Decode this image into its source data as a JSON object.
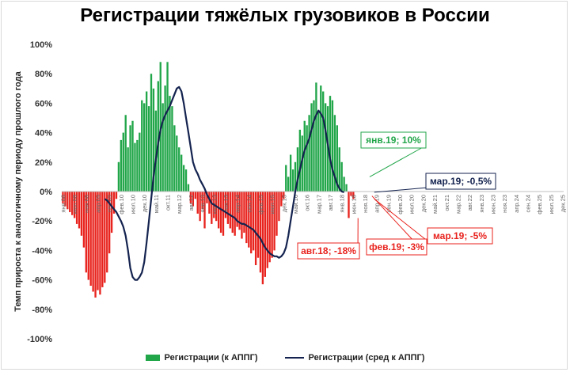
{
  "chart_data": {
    "type": "bar",
    "title": "Регистрации тяжёлых грузовиков в России",
    "ylabel": "Темп прироста к аналогичному периоду прошлого года",
    "xlabel": "",
    "ylim": [
      -100,
      100
    ],
    "y_ticks": [
      "100%",
      "80%",
      "60%",
      "40%",
      "20%",
      "0%",
      "-20%",
      "-40%",
      "-60%",
      "-80%",
      "-100%"
    ],
    "x_tick_labels": [
      "янв.08",
      "июн.08",
      "ноя.08",
      "апр.09",
      "сен.09",
      "фев.10",
      "июл.10",
      "дек.10",
      "май.11",
      "окт.11",
      "мар.12",
      "авг.12",
      "янв.13",
      "июн.13",
      "ноя.13",
      "апр.14",
      "сен.14",
      "фев.15",
      "июл.15",
      "дек.15",
      "май.16",
      "окт.16",
      "мар.17",
      "авг.17",
      "янв.18",
      "июн.18",
      "ноя.18",
      "апр.19",
      "сен.19",
      "фев.20",
      "июл.20",
      "дек.20",
      "май.21",
      "окт.21",
      "мар.22",
      "авг.22",
      "янв.23",
      "июн.23",
      "ноя.23",
      "апр.24",
      "сен.24",
      "фев.25",
      "июл.25",
      "дек.25"
    ],
    "x_start": "янв.08",
    "bars_unit": "% yoy, monthly, starting янв.08",
    "series": [
      {
        "name": "Регистрации (к АППГ)",
        "color_positive": "#22a64a",
        "color_negative": "#e8231e",
        "values": [
          -8,
          -10,
          -12,
          -14,
          -16,
          -18,
          -22,
          -25,
          -30,
          -38,
          -55,
          -60,
          -64,
          -68,
          -72,
          -67,
          -70,
          -65,
          -62,
          -55,
          -42,
          -28,
          -15,
          -5,
          20,
          35,
          40,
          52,
          30,
          45,
          48,
          33,
          35,
          40,
          62,
          60,
          68,
          58,
          80,
          70,
          55,
          75,
          88,
          60,
          72,
          88,
          65,
          58,
          45,
          38,
          30,
          25,
          18,
          15,
          5,
          -8,
          -10,
          -5,
          -15,
          -20,
          -12,
          -25,
          -8,
          -15,
          -22,
          -18,
          -20,
          -25,
          -28,
          -30,
          -18,
          -22,
          -25,
          -28,
          -30,
          -24,
          -26,
          -32,
          -28,
          -35,
          -38,
          -42,
          -40,
          -50,
          -45,
          -55,
          -63,
          -58,
          -52,
          -48,
          -45,
          -40,
          -30,
          -20,
          -10,
          -5,
          18,
          10,
          25,
          15,
          20,
          30,
          42,
          38,
          48,
          45,
          52,
          60,
          62,
          74,
          55,
          72,
          68,
          60,
          58,
          65,
          62,
          52,
          45,
          30,
          20,
          10,
          5,
          -18,
          -3,
          -5
        ],
        "labels_shown": true
      },
      {
        "name": "Регистрации (сред к АППГ)",
        "color": "#14234f",
        "values": [
          -5,
          -6,
          -8,
          -10,
          -12,
          -14,
          -17,
          -20,
          -24,
          -30,
          -40,
          -52,
          -58,
          -60,
          -60,
          -58,
          -55,
          -48,
          -35,
          -20,
          -5,
          10,
          22,
          33,
          42,
          48,
          52,
          55,
          58,
          62,
          66,
          70,
          71,
          68,
          60,
          50,
          40,
          30,
          20,
          15,
          12,
          8,
          5,
          2,
          -2,
          -5,
          -8,
          -9,
          -10,
          -11,
          -12,
          -13,
          -14,
          -15,
          -16,
          -17,
          -18,
          -20,
          -21,
          -22,
          -22,
          -23,
          -24,
          -25,
          -26,
          -28,
          -30,
          -32,
          -35,
          -38,
          -40,
          -42,
          -43,
          -44,
          -44,
          -45,
          -44,
          -42,
          -38,
          -30,
          -20,
          -10,
          0,
          8,
          15,
          22,
          28,
          32,
          36,
          42,
          48,
          52,
          55,
          53,
          50,
          42,
          32,
          22,
          15,
          10,
          5,
          2,
          0,
          -0.5
        ],
        "start_index": 18
      }
    ],
    "annotations": [
      {
        "text": "янв.19; 10%",
        "color": "#22a64a"
      },
      {
        "text": "мар.19; -0,5%",
        "color": "#14234f"
      },
      {
        "text": "мар.19; -5%",
        "color": "#e8231e"
      },
      {
        "text": "авг.18; -18%",
        "color": "#e8231e"
      },
      {
        "text": "фев.19; -3%",
        "color": "#e8231e"
      }
    ],
    "legend": [
      "Регистрации (к АППГ)",
      "Регистрации (сред к АППГ)"
    ],
    "legend_position": "bottom",
    "grid": false
  }
}
